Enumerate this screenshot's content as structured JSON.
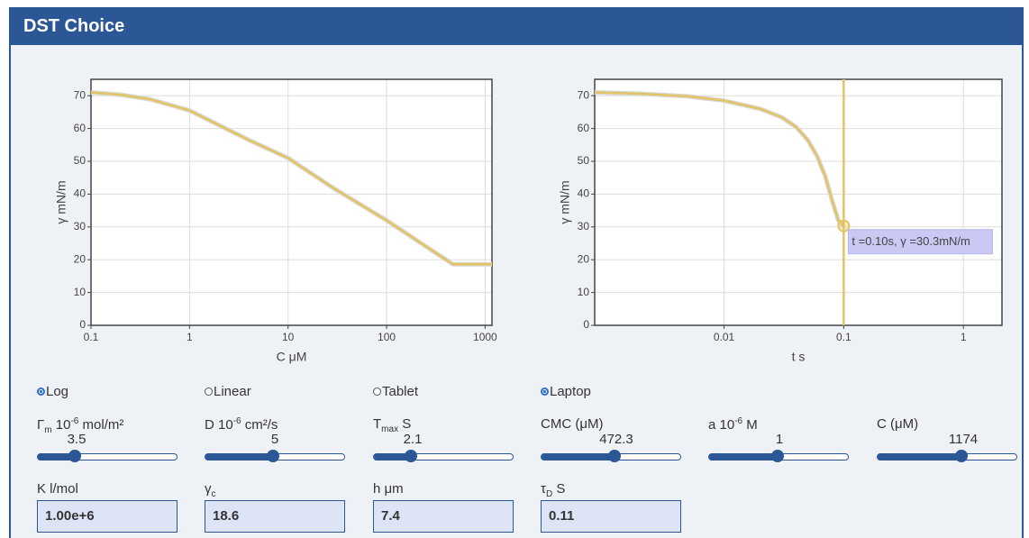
{
  "header": {
    "title": "DST Choice"
  },
  "chart_data": [
    {
      "type": "line",
      "xlabel": "C μM",
      "ylabel": "γ mN/m",
      "xscale": "log",
      "xlim": [
        0.1,
        1174
      ],
      "xticks": [
        0.1,
        1,
        10,
        100,
        1000
      ],
      "ylim": [
        0,
        75
      ],
      "yticks": [
        0,
        10,
        20,
        30,
        40,
        50,
        60,
        70
      ],
      "grid": true,
      "series": [
        {
          "color": "#e3c463",
          "x": [
            0.1,
            0.2,
            0.4,
            1,
            2,
            4,
            10,
            30,
            100,
            300,
            472.3,
            1174
          ],
          "values": [
            71,
            70.3,
            68.9,
            65.5,
            61,
            56.5,
            51,
            41.5,
            32,
            22.5,
            18.6,
            18.6
          ]
        }
      ]
    },
    {
      "type": "line",
      "xlabel": "t s",
      "ylabel": "γ mN/m",
      "xscale": "log",
      "xlim": [
        0.00083,
        2.1
      ],
      "xticks": [
        0.01,
        0.1,
        1
      ],
      "ylim": [
        0,
        75
      ],
      "yticks": [
        0,
        10,
        20,
        30,
        40,
        50,
        60,
        70
      ],
      "grid": true,
      "series": [
        {
          "color": "#e3c463",
          "x": [
            0.00083,
            0.002,
            0.005,
            0.01,
            0.02,
            0.03,
            0.04,
            0.05,
            0.06,
            0.07,
            0.08,
            0.09,
            0.1
          ],
          "values": [
            71,
            70.6,
            69.8,
            68.5,
            66,
            63.5,
            60.5,
            56.5,
            51.5,
            45.5,
            38,
            32,
            30.3
          ]
        }
      ],
      "marker": {
        "x": 0.1,
        "y": 30.3
      },
      "annotation": "t =0.10s, γ =30.3mN/m"
    }
  ],
  "controls": {
    "radios": [
      {
        "label": "Log",
        "checked": true
      },
      {
        "label": "Linear",
        "checked": false
      },
      {
        "label": "Tablet",
        "checked": false
      },
      {
        "label": "Laptop",
        "checked": true
      }
    ],
    "sliders": [
      {
        "label": [
          {
            "text": "Γ"
          },
          {
            "text": "m",
            "style": "sub"
          },
          {
            "text": " 10"
          },
          {
            "text": "-6",
            "style": "sup"
          },
          {
            "text": " mol/m²"
          }
        ],
        "value": 3.5
      },
      {
        "label": [
          {
            "text": "D 10"
          },
          {
            "text": "-6",
            "style": "sup"
          },
          {
            "text": " cm²/s"
          }
        ],
        "value": 5
      },
      {
        "label": [
          {
            "text": "T"
          },
          {
            "text": "max",
            "style": "sub"
          },
          {
            "text": " S"
          }
        ],
        "value": 2.1
      },
      {
        "label": [
          {
            "text": "CMC (μM)"
          }
        ],
        "value": 472.3
      },
      {
        "label": [
          {
            "text": "a 10"
          },
          {
            "text": "-6",
            "style": "sup"
          },
          {
            "text": " M"
          }
        ],
        "value": 1
      },
      {
        "label": [
          {
            "text": "C (μM)"
          }
        ],
        "value": 1174
      }
    ],
    "inputs": [
      {
        "label": [
          {
            "text": "K l/mol"
          }
        ],
        "value": "1.00e+6"
      },
      {
        "label": [
          {
            "text": "γ"
          },
          {
            "text": "c",
            "style": "sub"
          }
        ],
        "value": 18.6
      },
      {
        "label": [
          {
            "text": "h μm"
          }
        ],
        "value": 7.4
      },
      {
        "label": [
          {
            "text": "τ"
          },
          {
            "text": "D",
            "style": "sub"
          },
          {
            "text": " S"
          }
        ],
        "value": 0.11
      }
    ]
  }
}
